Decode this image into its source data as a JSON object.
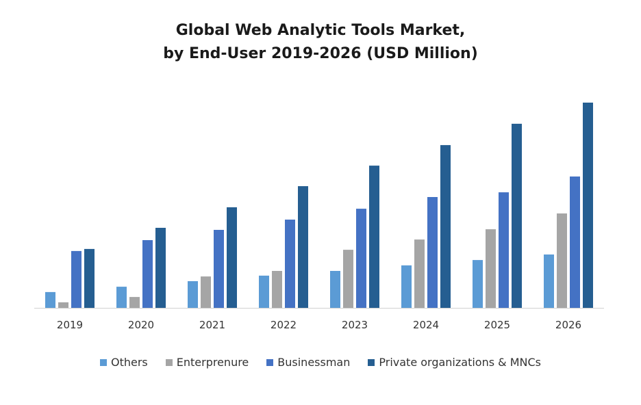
{
  "chart_data": {
    "type": "bar",
    "title_line1": "Global Web Analytic Tools Market,",
    "title_line2": "by End-User 2019-2026 (USD Million)",
    "xlabel": "",
    "ylabel": "",
    "categories": [
      "2019",
      "2020",
      "2021",
      "2022",
      "2023",
      "2024",
      "2025",
      "2026"
    ],
    "ylim": [
      0,
      100
    ],
    "grid": false,
    "legend_position": "bottom",
    "series": [
      {
        "name": "Others",
        "color": "#5b9bd5",
        "values": [
          7.7,
          10.3,
          13,
          15.7,
          18,
          20.7,
          23.3,
          26
        ]
      },
      {
        "name": "Enterprenure",
        "color": "#a5a5a5",
        "values": [
          2.7,
          5.3,
          15.3,
          18,
          28.3,
          33.3,
          38.3,
          46
        ]
      },
      {
        "name": "Businessman",
        "color": "#4472c4",
        "values": [
          27.7,
          33,
          38,
          43,
          48.3,
          54,
          56.3,
          64
        ]
      },
      {
        "name": "Private organizations & MNCs",
        "color": "#255e91",
        "values": [
          28.7,
          39,
          49,
          59.3,
          69.3,
          79.3,
          89.7,
          100
        ]
      }
    ]
  }
}
